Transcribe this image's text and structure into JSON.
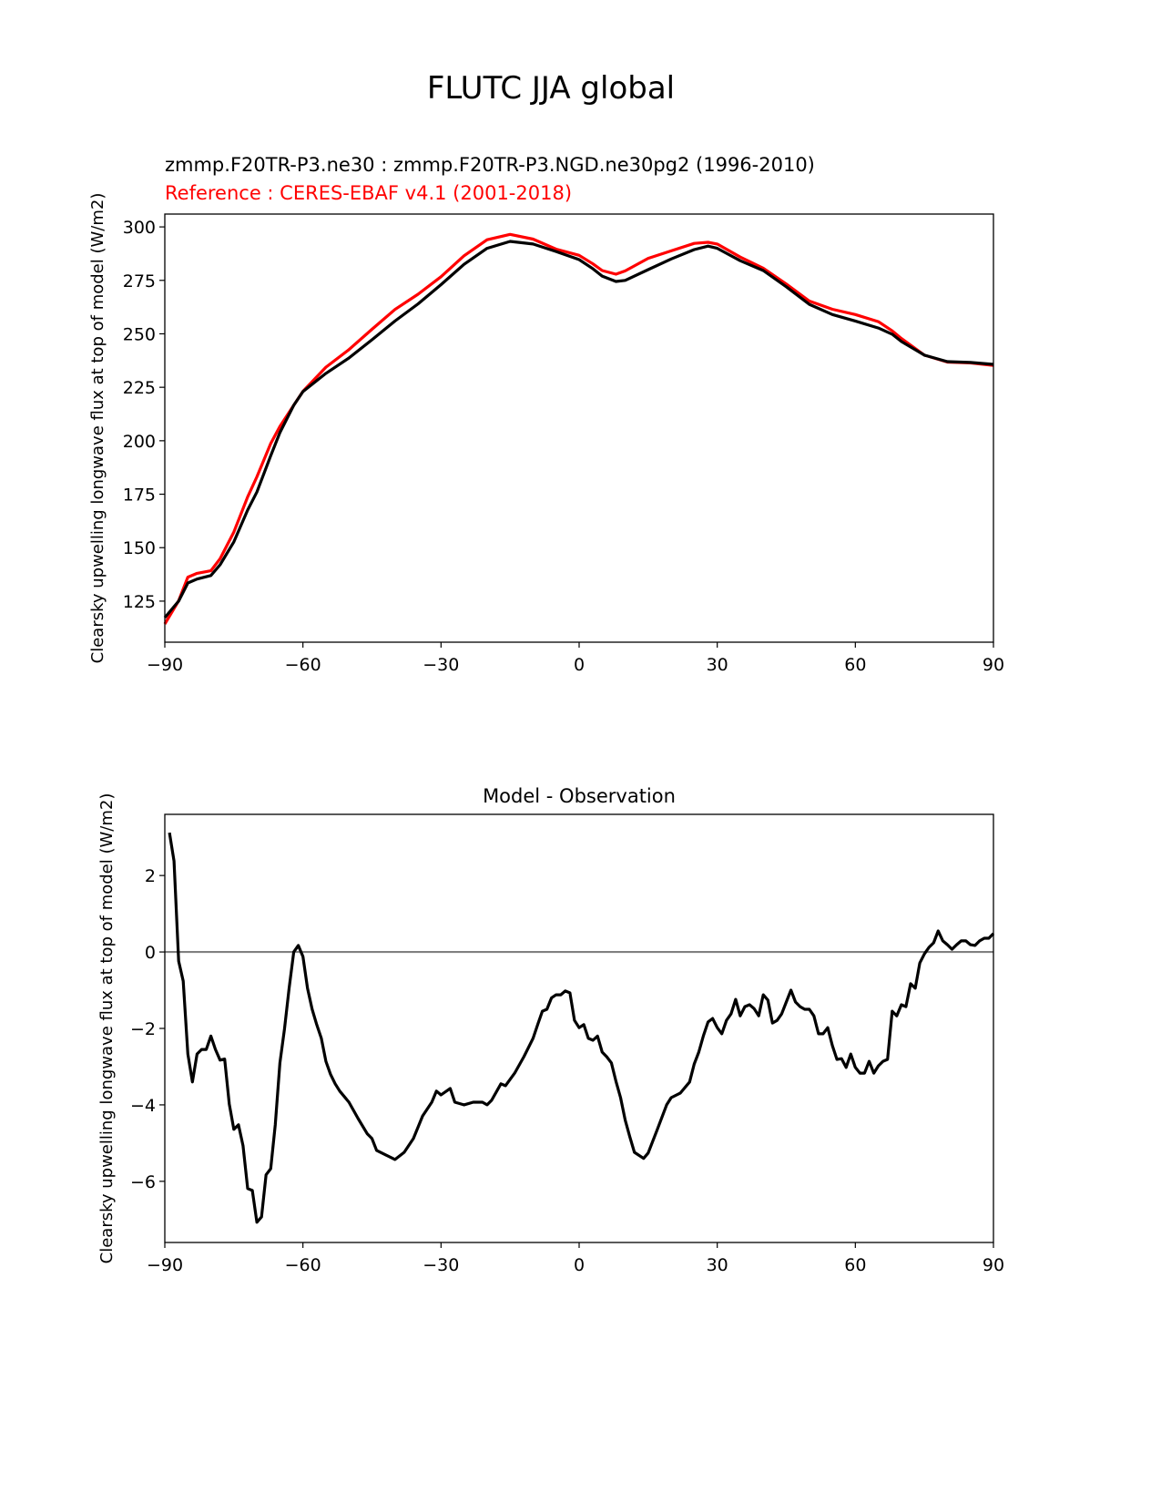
{
  "chart_data": {
    "suptitle": "FLUTC JJA global",
    "panels": [
      {
        "type": "line",
        "title_lines": [
          {
            "text": "zmmp.F20TR-P3.ne30 : zmmp.F20TR-P3.NGD.ne30pg2 (1996-2010)",
            "color": "#000000"
          },
          {
            "text": "Reference : CERES-EBAF v4.1 (2001-2018)",
            "color": "#ff0000"
          }
        ],
        "xlabel": "",
        "ylabel": "Clearsky upwelling longwave flux at top of model (W/m2)",
        "xlim": [
          -90,
          90
        ],
        "ylim": [
          105.8,
          306
        ],
        "xticks": [
          -90,
          -60,
          -30,
          0,
          30,
          60,
          90
        ],
        "xtick_labels": [
          "−90",
          "−60",
          "−30",
          "0",
          "30",
          "60",
          "90"
        ],
        "yticks": [
          125,
          150,
          175,
          200,
          225,
          250,
          275,
          300
        ],
        "ytick_labels": [
          "125",
          "150",
          "175",
          "200",
          "225",
          "250",
          "275",
          "300"
        ],
        "x": [
          -90,
          -87,
          -85,
          -83,
          -80,
          -78,
          -75,
          -72,
          -70,
          -67,
          -65,
          -62,
          -60,
          -55,
          -50,
          -45,
          -40,
          -35,
          -30,
          -25,
          -20,
          -15,
          -10,
          -5,
          0,
          3,
          5,
          8,
          10,
          15,
          20,
          25,
          28,
          30,
          35,
          40,
          45,
          50,
          55,
          60,
          65,
          68,
          70,
          75,
          80,
          85,
          90
        ],
        "series": [
          {
            "name": "Reference",
            "color": "#ff0000",
            "values": [
              114.3,
              125.2,
              136.2,
              138,
              139.2,
              144.8,
              157.3,
              173.8,
              183.1,
              198.7,
              206.7,
              216.6,
              223.1,
              234.4,
              242.6,
              252.1,
              261.4,
              268.5,
              276.7,
              286.5,
              294,
              296.5,
              294.3,
              289.6,
              286.7,
              282.7,
              279.6,
              277.9,
              279.4,
              285.3,
              288.8,
              292.3,
              292.8,
              292,
              285.9,
              280.7,
              273.3,
              265.3,
              261.5,
              259,
              255.7,
              251.4,
              247.8,
              240,
              236.8,
              236.4,
              235.2
            ]
          },
          {
            "name": "Model",
            "color": "#000000",
            "values": [
              117.3,
              125,
              133.5,
              135.3,
              137,
              142,
              152.7,
              167.6,
              176,
              193,
              203.8,
              216.6,
              223,
              231.5,
              238.7,
              247.2,
              256,
              264,
              273,
              282.5,
              290,
              293.2,
              292,
              288.5,
              284.7,
              280.4,
              277,
              274.5,
              275,
              280,
              285,
              289.4,
              291,
              290,
              284.2,
              279.6,
              272,
              263.8,
              259,
              256,
              252.7,
              249.8,
              246.4,
              240,
              237,
              236.6,
              235.7
            ]
          }
        ]
      },
      {
        "type": "line",
        "title": "Model - Observation",
        "xlabel": "",
        "ylabel": "Clearsky upwelling longwave flux at top of model (W/m2)",
        "xlim": [
          -90,
          90
        ],
        "ylim": [
          -7.6,
          3.6
        ],
        "xticks": [
          -90,
          -60,
          -30,
          0,
          30,
          60,
          90
        ],
        "xtick_labels": [
          "−90",
          "−60",
          "−30",
          "0",
          "30",
          "60",
          "90"
        ],
        "yticks": [
          -6,
          -4,
          -2,
          0,
          2
        ],
        "ytick_labels": [
          "−6",
          "−4",
          "−2",
          "0",
          "2"
        ],
        "zero_line_color": "#808080",
        "x": [
          -89,
          -88,
          -87,
          -86,
          -85,
          -84,
          -83,
          -82,
          -81,
          -80,
          -79,
          -78,
          -77,
          -76,
          -75,
          -74,
          -73,
          -72,
          -71,
          -70,
          -69,
          -68,
          -67,
          -66,
          -65,
          -64,
          -63,
          -62,
          -61,
          -60,
          -59,
          -58,
          -57,
          -56,
          -55,
          -54,
          -53,
          -52,
          -50,
          -48,
          -46,
          -45,
          -44,
          -42,
          -40,
          -38,
          -36,
          -34,
          -32,
          -31,
          -30,
          -28,
          -27,
          -25,
          -23,
          -21,
          -20,
          -19,
          -17,
          -16,
          -14,
          -12,
          -10,
          -9,
          -8,
          -7,
          -6,
          -5,
          -4,
          -3,
          -2,
          -1,
          0,
          1,
          2,
          3,
          4,
          5,
          6,
          7,
          8,
          9,
          10,
          11,
          12,
          14,
          15,
          17,
          19,
          20,
          22,
          24,
          25,
          26,
          27,
          28,
          29,
          30,
          31,
          32,
          33,
          34,
          35,
          36,
          37,
          38,
          39,
          40,
          41,
          42,
          43,
          44,
          45,
          46,
          47,
          48,
          49,
          50,
          51,
          52,
          53,
          54,
          55,
          56,
          57,
          58,
          59,
          60,
          61,
          62,
          63,
          64,
          65,
          66,
          67,
          68,
          69,
          70,
          71,
          72,
          73,
          74,
          75,
          76,
          77,
          78,
          79,
          80,
          81,
          82,
          83,
          84,
          85,
          86,
          87,
          88,
          89,
          90
        ],
        "series": [
          {
            "name": "Model - Observation",
            "color": "#000000",
            "values": [
              3.12,
              2.38,
              -0.24,
              -0.76,
              -2.67,
              -3.4,
              -2.67,
              -2.55,
              -2.55,
              -2.2,
              -2.55,
              -2.83,
              -2.8,
              -3.98,
              -4.64,
              -4.52,
              -5.07,
              -6.19,
              -6.24,
              -7.07,
              -6.93,
              -5.83,
              -5.67,
              -4.52,
              -2.9,
              -2.02,
              -0.95,
              0,
              0.17,
              -0.12,
              -0.95,
              -1.5,
              -1.9,
              -2.26,
              -2.86,
              -3.2,
              -3.45,
              -3.64,
              -3.93,
              -4.36,
              -4.76,
              -4.88,
              -5.19,
              -5.31,
              -5.43,
              -5.24,
              -4.88,
              -4.29,
              -3.93,
              -3.64,
              -3.74,
              -3.57,
              -3.93,
              -4.0,
              -3.93,
              -3.93,
              -4.0,
              -3.88,
              -3.45,
              -3.5,
              -3.17,
              -2.74,
              -2.26,
              -1.9,
              -1.55,
              -1.5,
              -1.2,
              -1.12,
              -1.12,
              -1.02,
              -1.07,
              -1.79,
              -1.98,
              -1.9,
              -2.26,
              -2.31,
              -2.2,
              -2.62,
              -2.74,
              -2.9,
              -3.38,
              -3.81,
              -4.4,
              -4.83,
              -5.24,
              -5.4,
              -5.26,
              -4.64,
              -4.0,
              -3.81,
              -3.69,
              -3.4,
              -2.93,
              -2.62,
              -2.19,
              -1.83,
              -1.74,
              -1.98,
              -2.14,
              -1.79,
              -1.62,
              -1.24,
              -1.67,
              -1.43,
              -1.38,
              -1.48,
              -1.67,
              -1.12,
              -1.26,
              -1.86,
              -1.79,
              -1.62,
              -1.31,
              -1.0,
              -1.31,
              -1.43,
              -1.5,
              -1.5,
              -1.67,
              -2.14,
              -2.14,
              -1.98,
              -2.45,
              -2.81,
              -2.79,
              -3.02,
              -2.67,
              -3.02,
              -3.17,
              -3.17,
              -2.86,
              -3.17,
              -2.98,
              -2.86,
              -2.81,
              -1.55,
              -1.67,
              -1.38,
              -1.43,
              -0.83,
              -0.95,
              -0.29,
              -0.05,
              0.12,
              0.24,
              0.55,
              0.29,
              0.19,
              0.07,
              0.19,
              0.29,
              0.29,
              0.19,
              0.17,
              0.29,
              0.36,
              0.36,
              0.48
            ]
          }
        ]
      }
    ]
  }
}
